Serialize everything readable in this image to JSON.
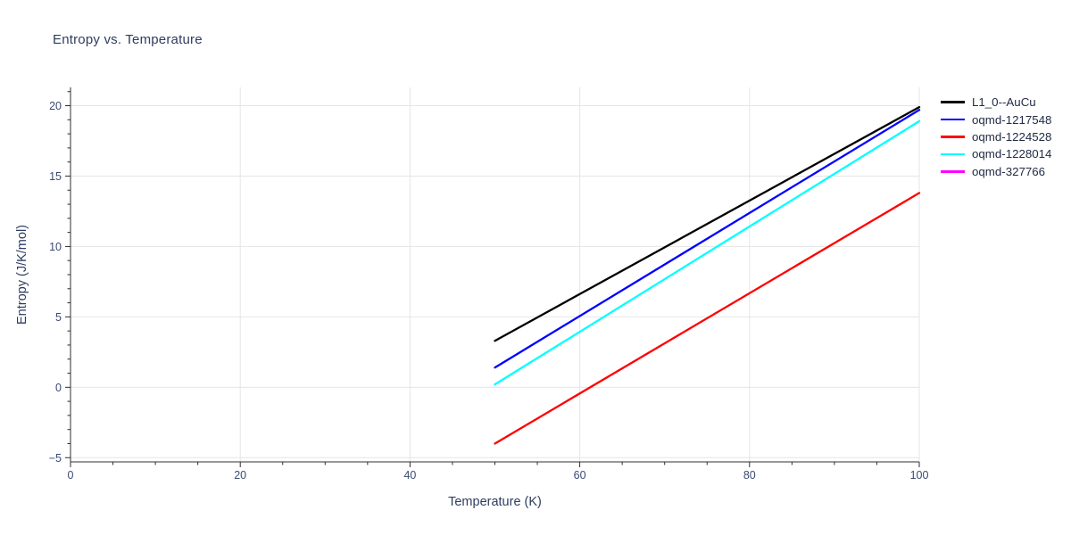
{
  "title": "Entropy vs. Temperature",
  "colors": {
    "background": "#ffffff",
    "grid": "#e5e5e5",
    "axis": "#2f2f2f",
    "tick_label": "#3b4a72",
    "title": "#2e3d60",
    "axis_label": "#2e3d60",
    "legend_text": "#222c46",
    "series_black": "#000000",
    "series_blue": "#0000ff",
    "series_red": "#ff0000",
    "series_cyan": "#00ffff",
    "series_magenta": "#ff00ff"
  },
  "chart_data": {
    "type": "line",
    "title": "Entropy vs. Temperature",
    "xlabel": "Temperature (K)",
    "ylabel": "Entropy (J/K/mol)",
    "xlim": [
      0,
      100
    ],
    "ylim": [
      -5.3,
      21.3
    ],
    "grid": "major gridlines on, light gray",
    "legend_position": "outside top-right",
    "x_ticks": {
      "values": [
        0,
        20,
        40,
        60,
        80,
        100
      ],
      "labels": [
        "0",
        "20",
        "40",
        "60",
        "80",
        "100"
      ],
      "minor_step": 5
    },
    "y_ticks": {
      "values": [
        -5,
        0,
        5,
        10,
        15,
        20
      ],
      "labels": [
        "−5",
        "0",
        "5",
        "10",
        "15",
        "20"
      ],
      "minor_step": 1
    },
    "series": [
      {
        "name": "L1_0--AuCu",
        "color": "#000000",
        "visible": true,
        "x": [
          50,
          100
        ],
        "y": [
          3.3,
          19.9
        ]
      },
      {
        "name": "oqmd-1217548",
        "color": "#0000ff",
        "visible": true,
        "x": [
          50,
          100
        ],
        "y": [
          1.4,
          19.7
        ]
      },
      {
        "name": "oqmd-1224528",
        "color": "#ff0000",
        "visible": true,
        "x": [
          50,
          100
        ],
        "y": [
          -4.0,
          13.8
        ]
      },
      {
        "name": "oqmd-1228014",
        "color": "#00ffff",
        "visible": true,
        "x": [
          50,
          100
        ],
        "y": [
          0.2,
          18.9
        ]
      },
      {
        "name": "oqmd-327766",
        "color": "#ff00ff",
        "visible": false,
        "x": [],
        "y": []
      }
    ]
  }
}
